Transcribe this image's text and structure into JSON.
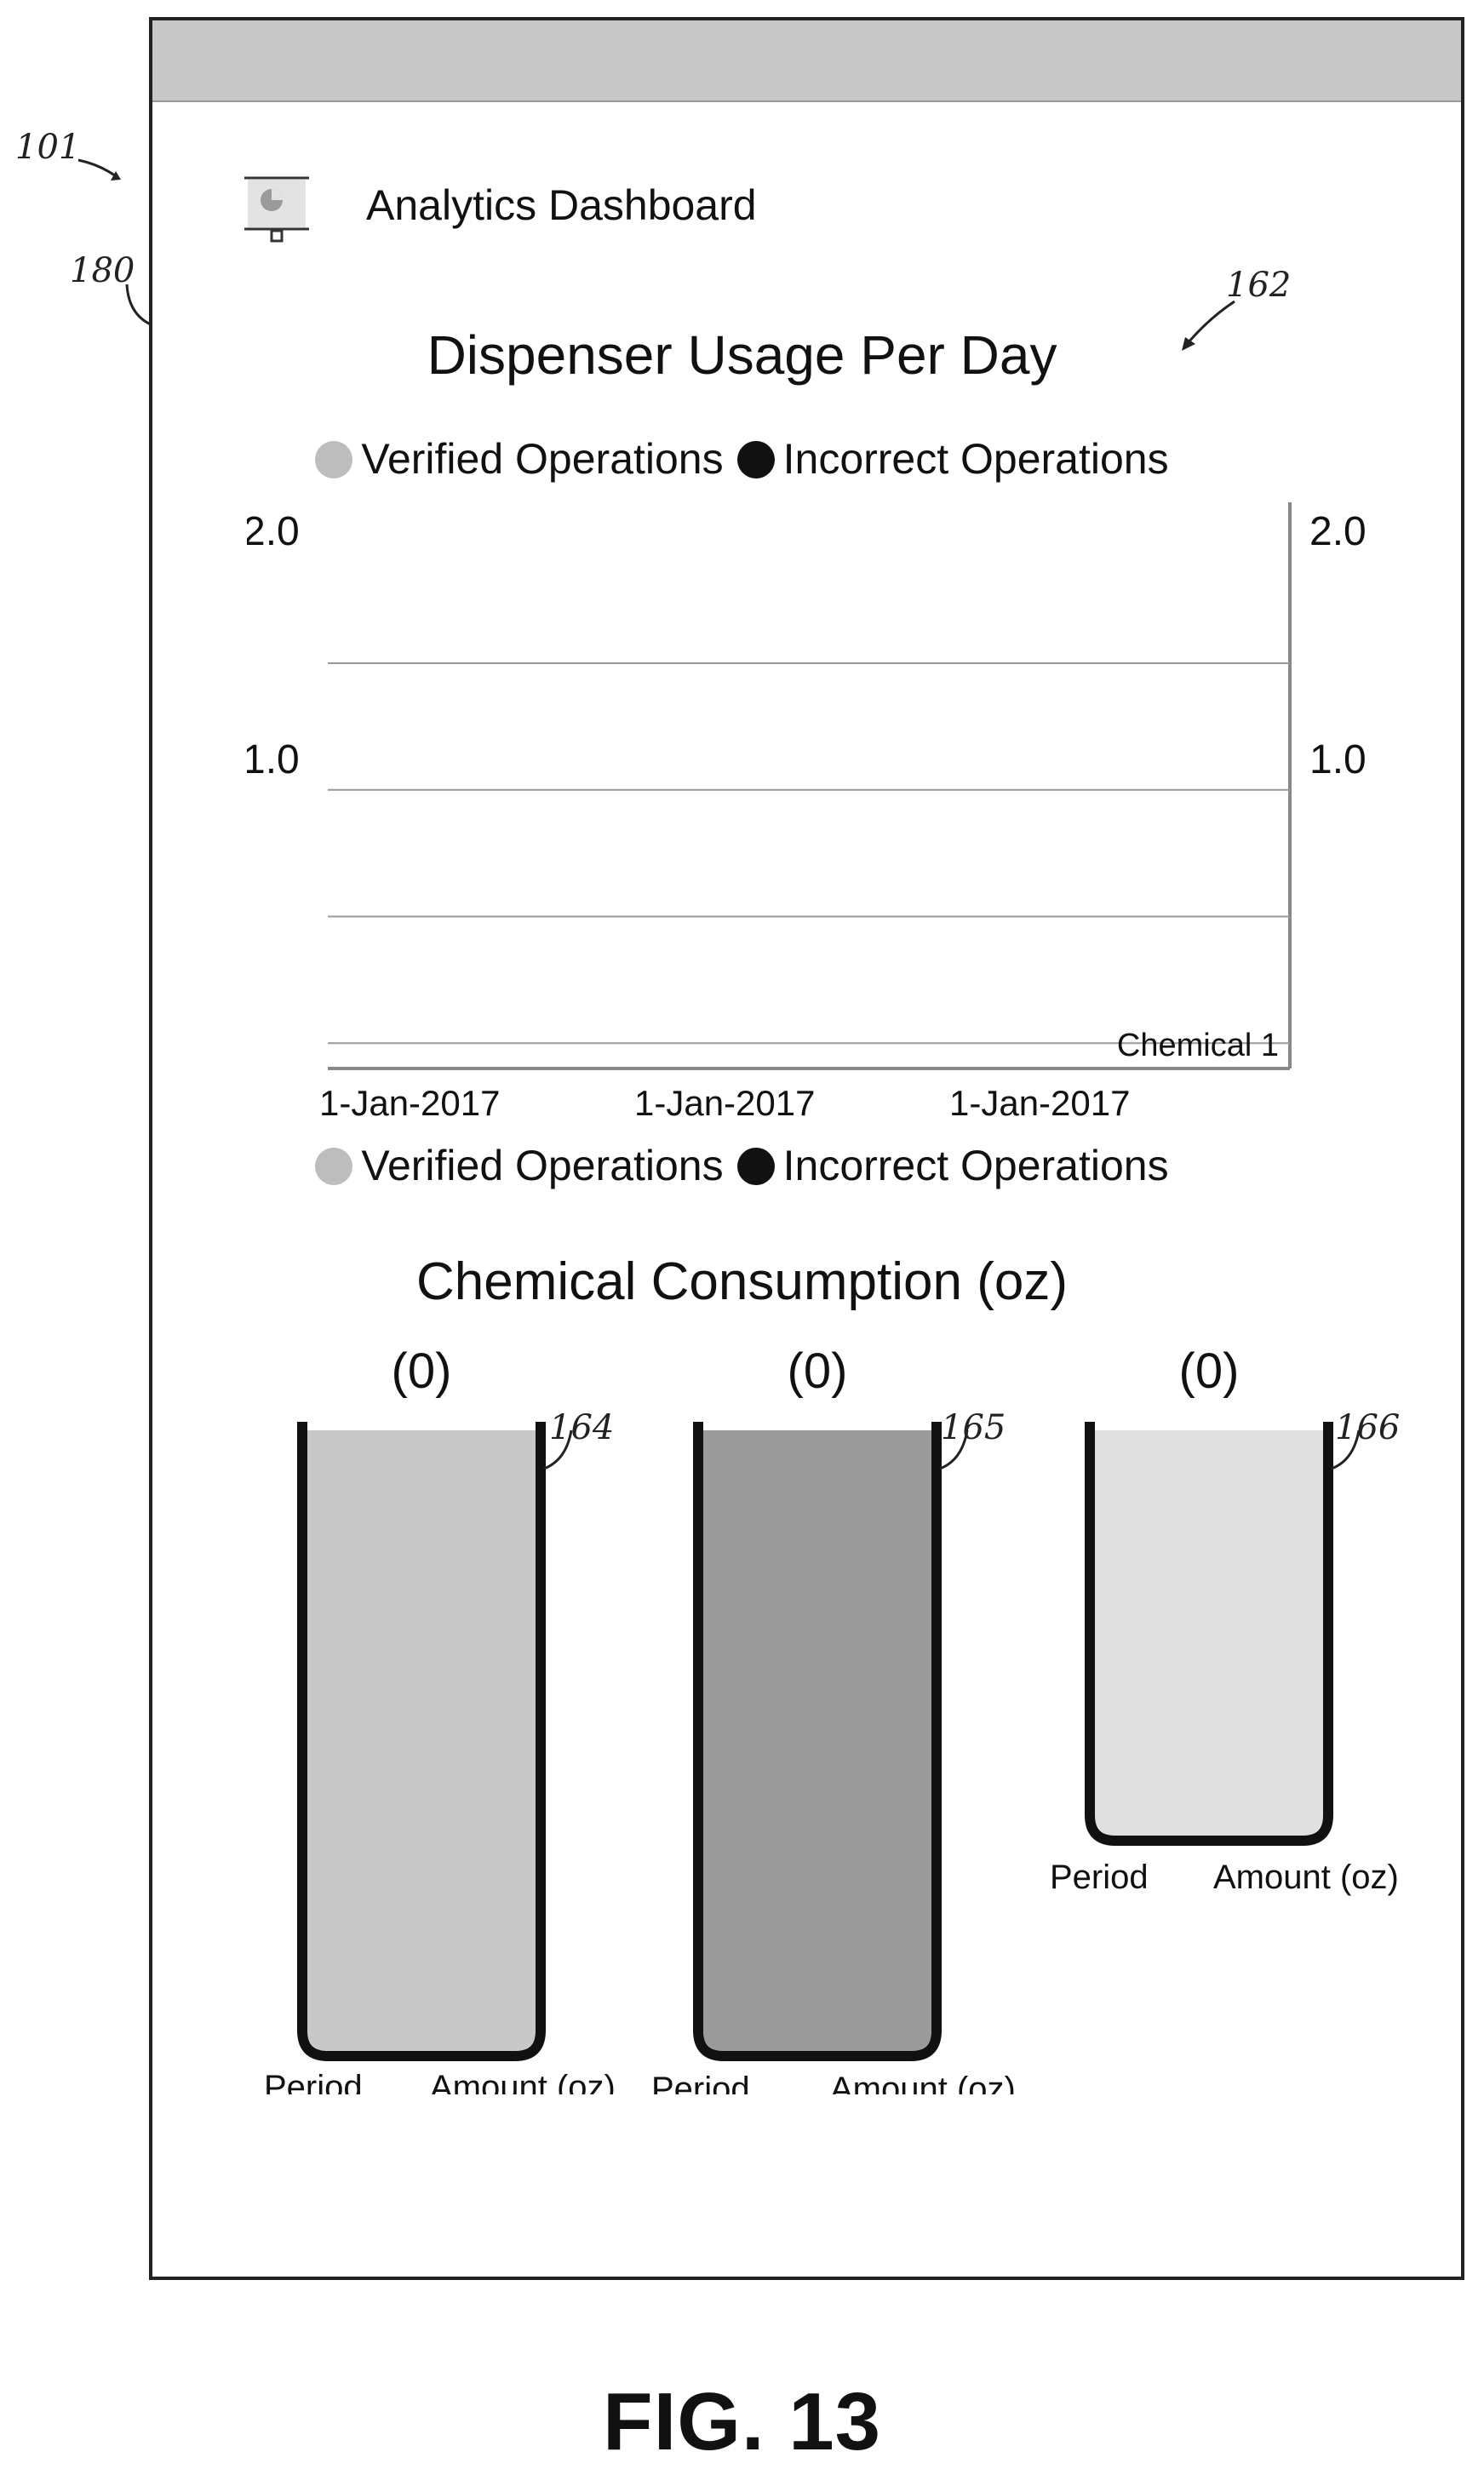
{
  "refs": {
    "device": "101",
    "screen": "180",
    "usage_chart": "162",
    "beaker1": "164",
    "beaker2": "165",
    "beaker3": "166"
  },
  "header": {
    "title": "Analytics Dashboard",
    "icon": "presentation-board-icon"
  },
  "chart_data": [
    {
      "type": "bar",
      "title": "Dispenser Usage Per Day",
      "legend": [
        "Verified Operations",
        "Incorrect Operations"
      ],
      "legend_bottom": [
        "Verified Operations",
        "Incorrect Operations"
      ],
      "legend_colors": [
        "#bdbdbd",
        "#111111"
      ],
      "categories": [
        "1-Jan-2017",
        "1-Jan-2017",
        "1-Jan-2017"
      ],
      "series": [],
      "y_ticks_left": [
        "2.0",
        "1.0"
      ],
      "y_ticks_right": [
        "2.0",
        "1.0"
      ],
      "ylim": [
        0,
        2.0
      ],
      "grid": true,
      "annotation": "Chemical 1"
    },
    {
      "type": "bar",
      "title": "Chemical Consumption (oz)",
      "beakers": [
        {
          "value": "(0)",
          "fill": "#c8c8c8",
          "level": 1.0,
          "xlabel": "Period",
          "ylabel": "Amount (oz)"
        },
        {
          "value": "(0)",
          "fill": "#9a9a9a",
          "level": 1.0,
          "xlabel": "Period",
          "ylabel": "Amount (oz)"
        },
        {
          "value": "(0)",
          "fill": "#e0e0e0",
          "level": 1.0,
          "xlabel": "Period",
          "ylabel": "Amount (oz)"
        }
      ]
    }
  ],
  "figure_label": "FIG. 13"
}
